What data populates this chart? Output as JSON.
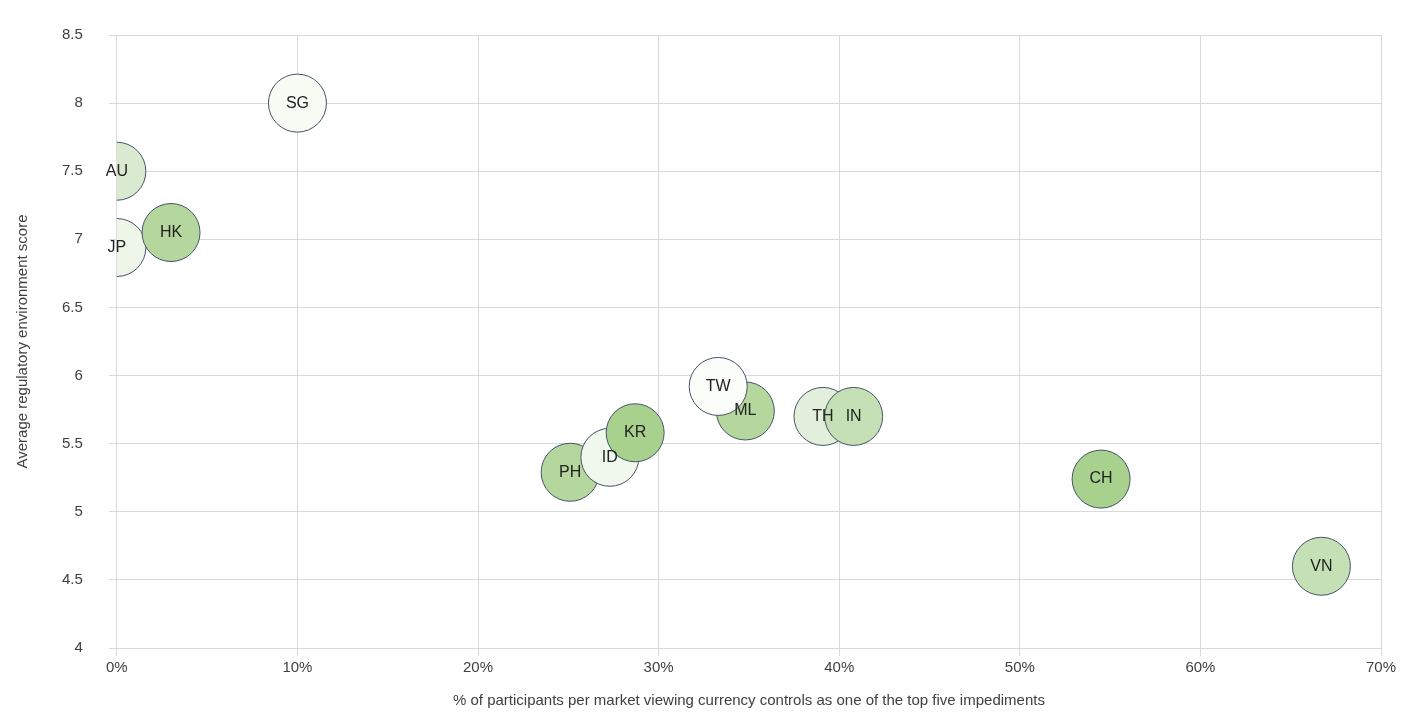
{
  "chart_data": {
    "type": "bubble",
    "xlabel": "% of participants per market viewing currency controls as one of the top five impediments",
    "ylabel": "Average regulatory environment score",
    "xlim": [
      0,
      70
    ],
    "xticks": [
      {
        "value": 0,
        "label": "0%"
      },
      {
        "value": 10,
        "label": "10%"
      },
      {
        "value": 20,
        "label": "20%"
      },
      {
        "value": 30,
        "label": "30%"
      },
      {
        "value": 40,
        "label": "40%"
      },
      {
        "value": 50,
        "label": "50%"
      },
      {
        "value": 60,
        "label": "60%"
      },
      {
        "value": 70,
        "label": "70%"
      }
    ],
    "ylim": [
      4,
      8.5
    ],
    "yticks": [
      4,
      4.5,
      5,
      5.5,
      6,
      6.5,
      7,
      7.5,
      8,
      8.5
    ],
    "grid": true,
    "series": [
      {
        "name": "SG",
        "color": "#f7fbf4",
        "x": [
          10
        ],
        "values": [
          8.0
        ],
        "sizes": [
          1
        ]
      },
      {
        "name": "AU",
        "color": "#d9ead0",
        "x": [
          0
        ],
        "values": [
          7.5
        ],
        "sizes": [
          1
        ]
      },
      {
        "name": "HK",
        "color": "#b5d69c",
        "x": [
          3
        ],
        "values": [
          7.05
        ],
        "sizes": [
          1
        ]
      },
      {
        "name": "JP",
        "color": "#eef5e9",
        "x": [
          0
        ],
        "values": [
          6.94
        ],
        "sizes": [
          1
        ]
      },
      {
        "name": "TW",
        "color": "#fbfdf9",
        "x": [
          33.3
        ],
        "values": [
          5.92
        ],
        "sizes": [
          1
        ]
      },
      {
        "name": "ML",
        "color": "#b5d69c",
        "x": [
          34.8
        ],
        "values": [
          5.74
        ],
        "sizes": [
          1
        ]
      },
      {
        "name": "IN",
        "color": "#c5e0b4",
        "x": [
          40.8
        ],
        "values": [
          5.7
        ],
        "sizes": [
          1
        ]
      },
      {
        "name": "TH",
        "color": "#e2efda",
        "x": [
          39.1
        ],
        "values": [
          5.7
        ],
        "sizes": [
          1
        ]
      },
      {
        "name": "KR",
        "color": "#a9d18e",
        "x": [
          28.7
        ],
        "values": [
          5.58
        ],
        "sizes": [
          1
        ]
      },
      {
        "name": "ID",
        "color": "#f0f7ec",
        "x": [
          27.3
        ],
        "values": [
          5.4
        ],
        "sizes": [
          1
        ]
      },
      {
        "name": "PH",
        "color": "#b5d69c",
        "x": [
          25.1
        ],
        "values": [
          5.29
        ],
        "sizes": [
          1
        ]
      },
      {
        "name": "CH",
        "color": "#a9d18e",
        "x": [
          54.5
        ],
        "values": [
          5.24
        ],
        "sizes": [
          1
        ]
      },
      {
        "name": "VN",
        "color": "#c5e0b4",
        "x": [
          66.7
        ],
        "values": [
          4.6
        ],
        "sizes": [
          1
        ]
      }
    ]
  }
}
